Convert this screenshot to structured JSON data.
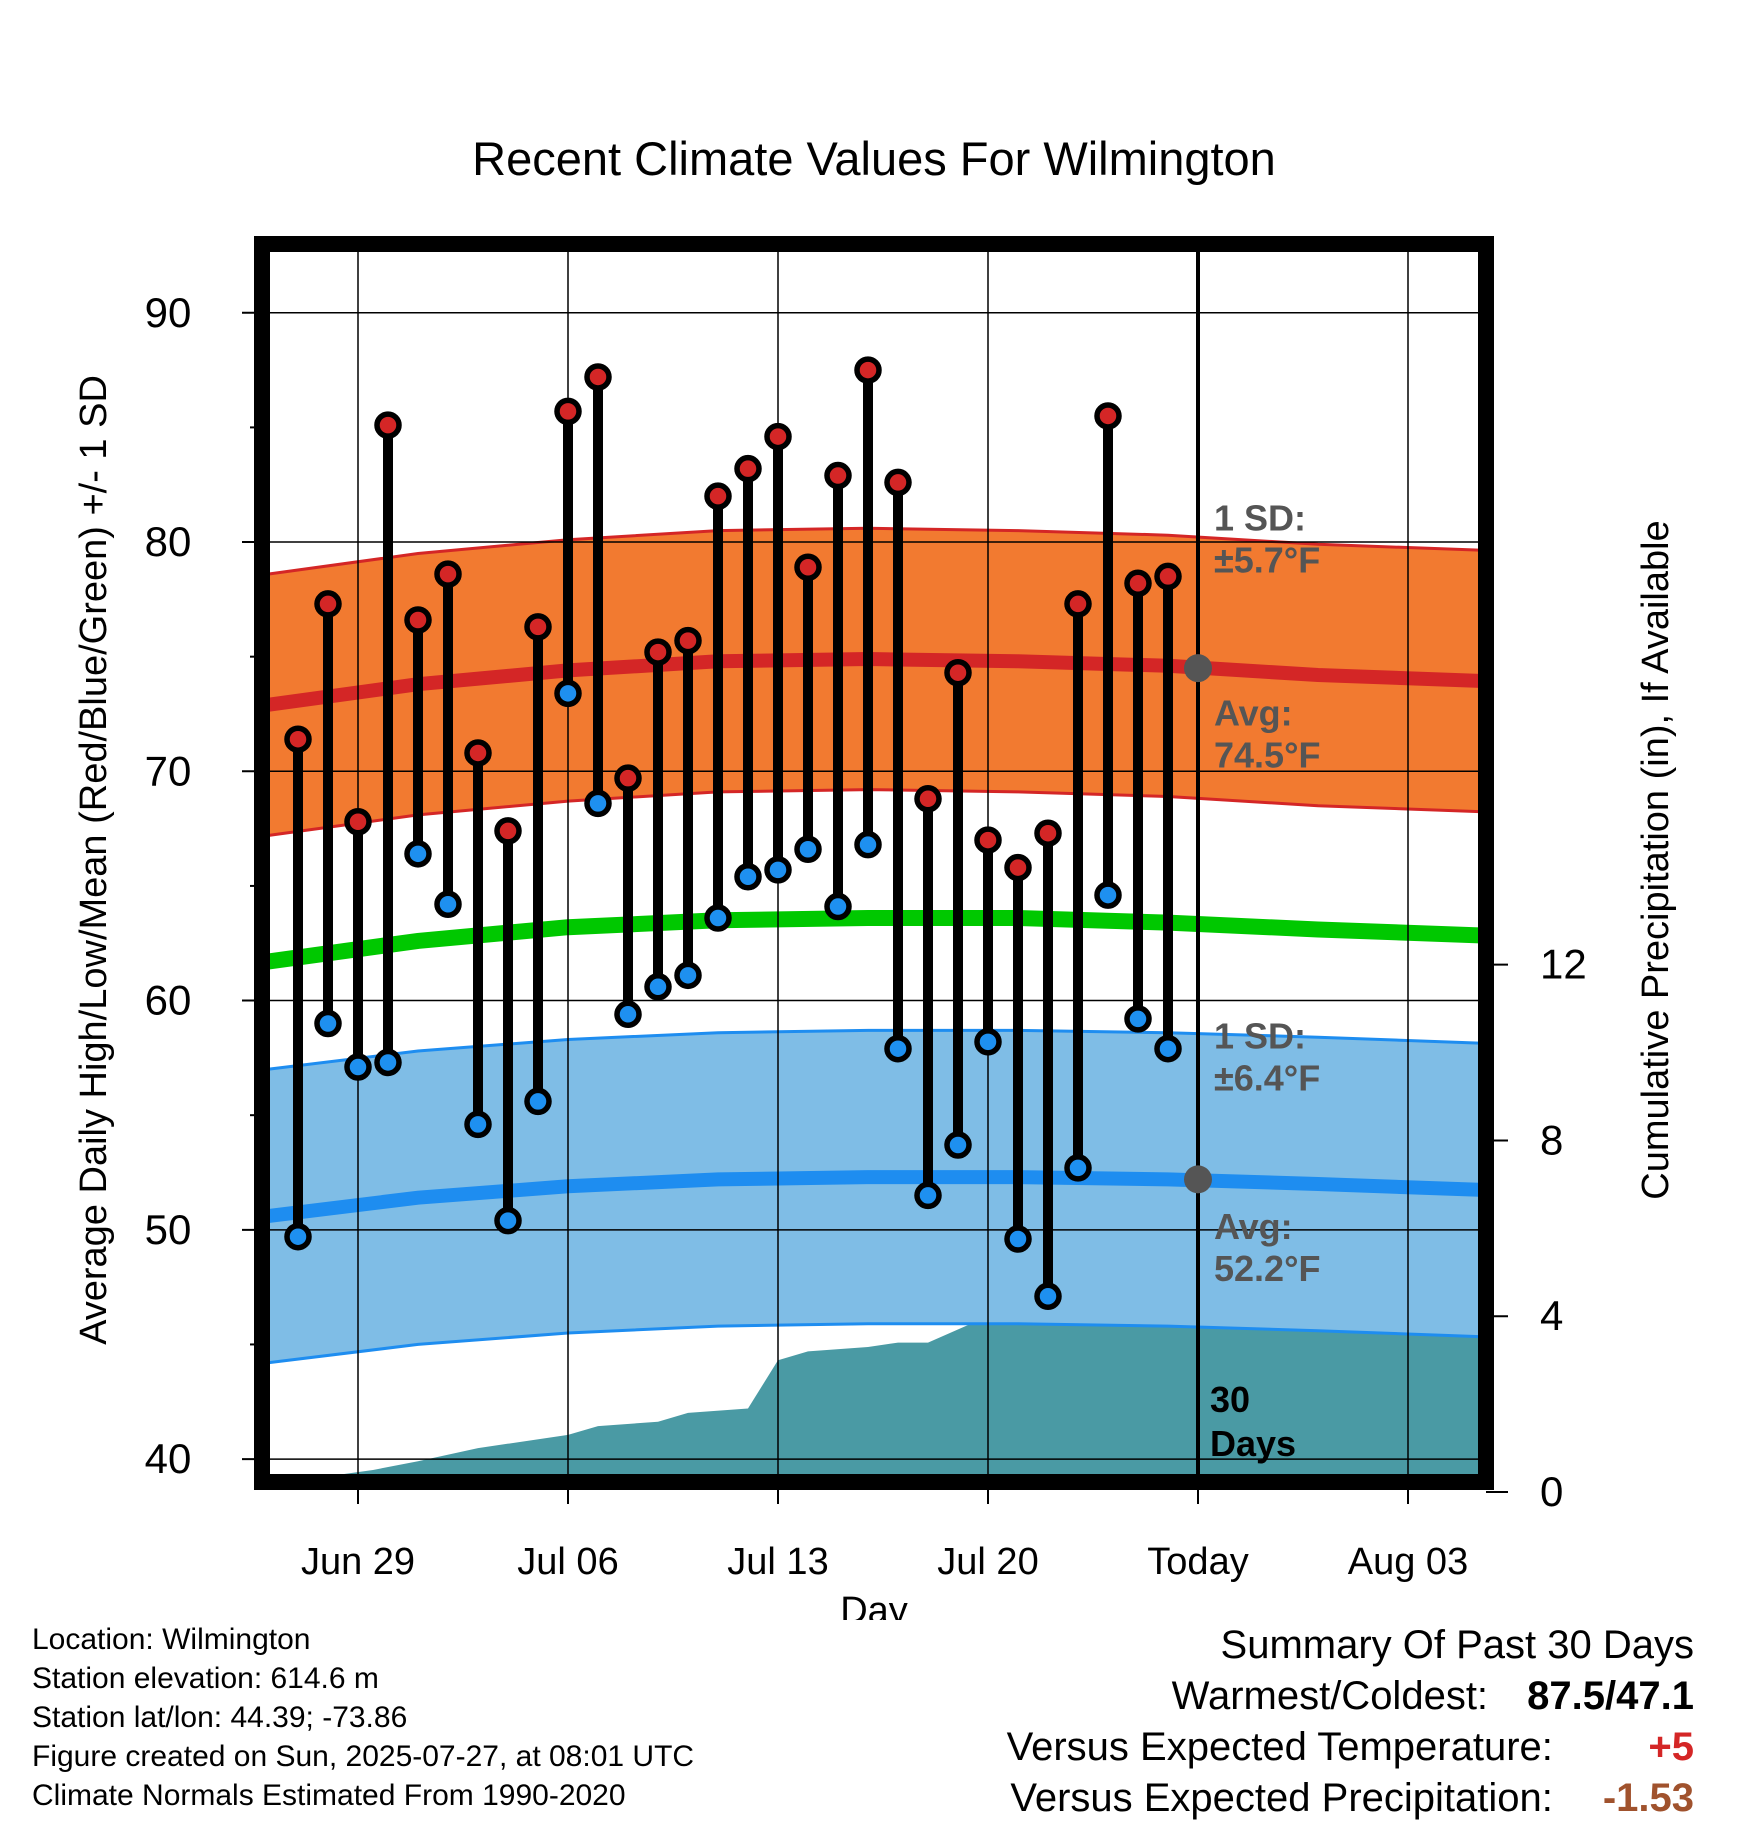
{
  "chart_data": {
    "type": "line",
    "title": "Recent Climate Values For Wilmington",
    "xlabel": "Day",
    "ylabel": "Average Daily High/Low/Mean (Red/Blue/Green) +/- 1 SD",
    "y2label": "Cumulative Precipitation (in), If Available",
    "ylim": [
      39,
      93
    ],
    "y2lim": [
      0,
      28.4
    ],
    "yticks": [
      40,
      50,
      60,
      70,
      80,
      90
    ],
    "y2ticks": [
      0,
      4,
      8,
      12
    ],
    "xticks": [
      {
        "day": 3,
        "label": "Jun 29"
      },
      {
        "day": 10,
        "label": "Jul 06"
      },
      {
        "day": 17,
        "label": "Jul 13"
      },
      {
        "day": 24,
        "label": "Jul 20"
      },
      {
        "day": 31,
        "label": "Today"
      },
      {
        "day": 38,
        "label": "Aug 03"
      }
    ],
    "x_range": [
      0,
      41.3
    ],
    "highs": [
      71.4,
      77.3,
      67.8,
      85.1,
      76.6,
      78.6,
      70.8,
      67.4,
      76.3,
      85.7,
      87.2,
      69.7,
      75.2,
      75.7,
      82.0,
      83.2,
      84.6,
      78.9,
      82.9,
      87.5,
      82.6,
      68.8,
      74.3,
      67.0,
      65.8,
      67.3,
      77.3,
      85.5,
      78.2,
      78.5
    ],
    "lows": [
      49.7,
      59.0,
      57.1,
      57.3,
      66.4,
      64.2,
      54.6,
      50.4,
      55.6,
      73.4,
      68.6,
      59.4,
      60.6,
      61.1,
      63.6,
      65.4,
      65.7,
      66.6,
      64.1,
      66.8,
      57.9,
      51.5,
      53.7,
      58.2,
      49.6,
      47.1,
      52.7,
      64.6,
      59.2,
      57.9
    ],
    "normal_high_x": [
      0,
      5,
      10,
      15,
      20,
      25,
      30,
      35,
      41.3
    ],
    "normal_high": [
      72.9,
      73.8,
      74.4,
      74.8,
      74.9,
      74.8,
      74.6,
      74.2,
      73.9
    ],
    "normal_high_sd": 5.7,
    "normal_low": [
      50.6,
      51.4,
      51.9,
      52.2,
      52.3,
      52.3,
      52.2,
      52.0,
      51.7
    ],
    "normal_low_sd": 6.4,
    "normal_mean": [
      61.7,
      62.6,
      63.2,
      63.5,
      63.6,
      63.6,
      63.4,
      63.1,
      62.8
    ],
    "precip_x": [
      0,
      1.4,
      3.5,
      5,
      7,
      10,
      11,
      13,
      14,
      16,
      17,
      18,
      20,
      21,
      22,
      24,
      27.5,
      28,
      31,
      41.3
    ],
    "precip": [
      0,
      0.3,
      0.5,
      0.7,
      1.0,
      1.3,
      1.5,
      1.6,
      1.8,
      1.9,
      3.0,
      3.2,
      3.3,
      3.4,
      3.4,
      4.0,
      4.0,
      4.3,
      4.4,
      4.3
    ],
    "today_high_avg": 74.5,
    "today_low_avg": 52.2,
    "annotations": {
      "high_sd": [
        "1 SD:",
        "±5.7°F"
      ],
      "high_avg": [
        "Avg:",
        "74.5°F"
      ],
      "low_sd": [
        "1 SD:",
        "±6.4°F"
      ],
      "low_avg": [
        "Avg:",
        "52.2°F"
      ],
      "days": [
        "30",
        "Days"
      ]
    },
    "colors": {
      "high_band": "#f27a30",
      "high_line": "#d42626",
      "low_band": "#7fbde6",
      "low_line": "#1e8df0",
      "mean_line": "#00c800",
      "precip": "#4a9aa4",
      "high_marker": "#d42626",
      "low_marker": "#1e90f0",
      "annotation": "#555555"
    }
  },
  "footer": {
    "location": "Location: Wilmington",
    "elevation": "Station elevation: 614.6 m",
    "latlon": "Station lat/lon: 44.39; -73.86",
    "created": "Figure created on Sun, 2025-07-27, at 08:01 UTC",
    "normals": "Climate Normals Estimated From 1990-2020"
  },
  "summary": {
    "title": "Summary Of Past 30 Days",
    "warm_cold_label": "Warmest/Coldest:",
    "warm_cold_value": "87.5/47.1",
    "temp_label": "Versus Expected Temperature:",
    "temp_value": "+5",
    "temp_color": "#d42626",
    "precip_label": "Versus Expected Precipitation:",
    "precip_value": "-1.53",
    "precip_color": "#a0522d"
  }
}
